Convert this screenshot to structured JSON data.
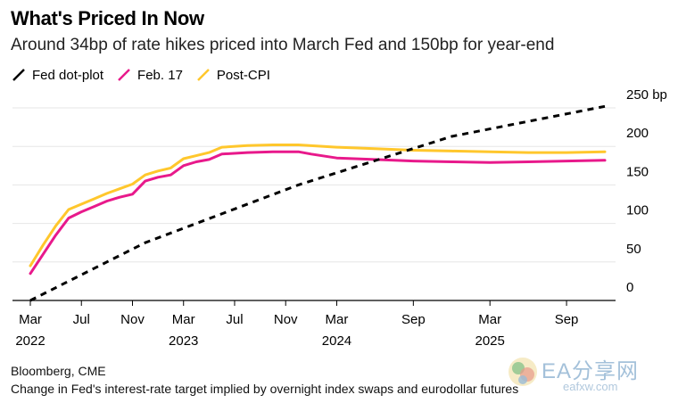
{
  "title": "What's Priced In Now",
  "subtitle": "Around 34bp of rate hikes priced into March Fed and 150bp for year-end",
  "footer": {
    "source": "Bloomberg, CME",
    "note": "Change in Fed's interest-rate target implied by overnight index swaps and eurodollar futures"
  },
  "watermark": {
    "text": "EA分享网",
    "url": "eafxw.com"
  },
  "colors": {
    "background": "#ffffff",
    "grid": "#e6e6e6",
    "axis": "#000000",
    "text": "#000000"
  },
  "chart_data": {
    "type": "line",
    "title": "What's Priced In Now",
    "subtitle": "Around 34bp of rate hikes priced into March Fed and 150bp for year-end",
    "x_range": [
      "2022-03",
      "2025-12"
    ],
    "y_unit": "bp",
    "ylim": [
      0,
      250
    ],
    "y_ticks": [
      {
        "value": 250,
        "label": "250 bp"
      },
      {
        "value": 200,
        "label": "200"
      },
      {
        "value": 150,
        "label": "150"
      },
      {
        "value": 100,
        "label": "100"
      },
      {
        "value": 50,
        "label": "50"
      },
      {
        "value": 0,
        "label": "0"
      }
    ],
    "x_ticks": [
      {
        "x": "2022-03",
        "label": "Mar",
        "year": "2022"
      },
      {
        "x": "2022-07",
        "label": "Jul",
        "year": ""
      },
      {
        "x": "2022-11",
        "label": "Nov",
        "year": ""
      },
      {
        "x": "2023-03",
        "label": "Mar",
        "year": "2023"
      },
      {
        "x": "2023-07",
        "label": "Jul",
        "year": ""
      },
      {
        "x": "2023-11",
        "label": "Nov",
        "year": ""
      },
      {
        "x": "2024-03",
        "label": "Mar",
        "year": "2024"
      },
      {
        "x": "2024-09",
        "label": "Sep",
        "year": ""
      },
      {
        "x": "2025-03",
        "label": "Mar",
        "year": "2025"
      },
      {
        "x": "2025-09",
        "label": "Sep",
        "year": ""
      }
    ],
    "grid": "horizontal",
    "legend_position": "top-left",
    "series": [
      {
        "name": "Fed dot-plot",
        "color": "#000000",
        "style": "dashed",
        "points": [
          [
            "2022-03",
            0
          ],
          [
            "2022-12",
            75
          ],
          [
            "2023-12",
            150
          ],
          [
            "2024-12",
            213
          ],
          [
            "2025-12",
            252
          ]
        ]
      },
      {
        "name": "Feb. 17",
        "color": "#e8198b",
        "style": "solid",
        "points": [
          [
            "2022-03",
            35
          ],
          [
            "2022-04",
            60
          ],
          [
            "2022-05",
            85
          ],
          [
            "2022-06",
            107
          ],
          [
            "2022-07",
            115
          ],
          [
            "2022-08",
            122
          ],
          [
            "2022-09",
            129
          ],
          [
            "2022-10",
            134
          ],
          [
            "2022-11",
            138
          ],
          [
            "2022-12",
            155
          ],
          [
            "2023-01",
            160
          ],
          [
            "2023-02",
            163
          ],
          [
            "2023-03",
            175
          ],
          [
            "2023-04",
            180
          ],
          [
            "2023-05",
            183
          ],
          [
            "2023-06",
            190
          ],
          [
            "2023-08",
            192
          ],
          [
            "2023-10",
            193
          ],
          [
            "2023-12",
            193
          ],
          [
            "2024-01",
            190
          ],
          [
            "2024-03",
            185
          ],
          [
            "2024-06",
            183
          ],
          [
            "2024-09",
            181
          ],
          [
            "2024-12",
            180
          ],
          [
            "2025-03",
            179
          ],
          [
            "2025-06",
            180
          ],
          [
            "2025-09",
            181
          ],
          [
            "2025-12",
            182
          ]
        ]
      },
      {
        "name": "Post-CPI",
        "color": "#ffc72c",
        "style": "solid",
        "points": [
          [
            "2022-03",
            45
          ],
          [
            "2022-04",
            72
          ],
          [
            "2022-05",
            97
          ],
          [
            "2022-06",
            118
          ],
          [
            "2022-07",
            125
          ],
          [
            "2022-08",
            132
          ],
          [
            "2022-09",
            139
          ],
          [
            "2022-10",
            145
          ],
          [
            "2022-11",
            151
          ],
          [
            "2022-12",
            163
          ],
          [
            "2023-01",
            168
          ],
          [
            "2023-02",
            172
          ],
          [
            "2023-03",
            184
          ],
          [
            "2023-04",
            188
          ],
          [
            "2023-05",
            192
          ],
          [
            "2023-06",
            199
          ],
          [
            "2023-08",
            201
          ],
          [
            "2023-10",
            202
          ],
          [
            "2023-12",
            202
          ],
          [
            "2024-03",
            199
          ],
          [
            "2024-06",
            197
          ],
          [
            "2024-09",
            195
          ],
          [
            "2024-12",
            194
          ],
          [
            "2025-03",
            193
          ],
          [
            "2025-06",
            192
          ],
          [
            "2025-09",
            192
          ],
          [
            "2025-12",
            193
          ]
        ]
      }
    ]
  }
}
